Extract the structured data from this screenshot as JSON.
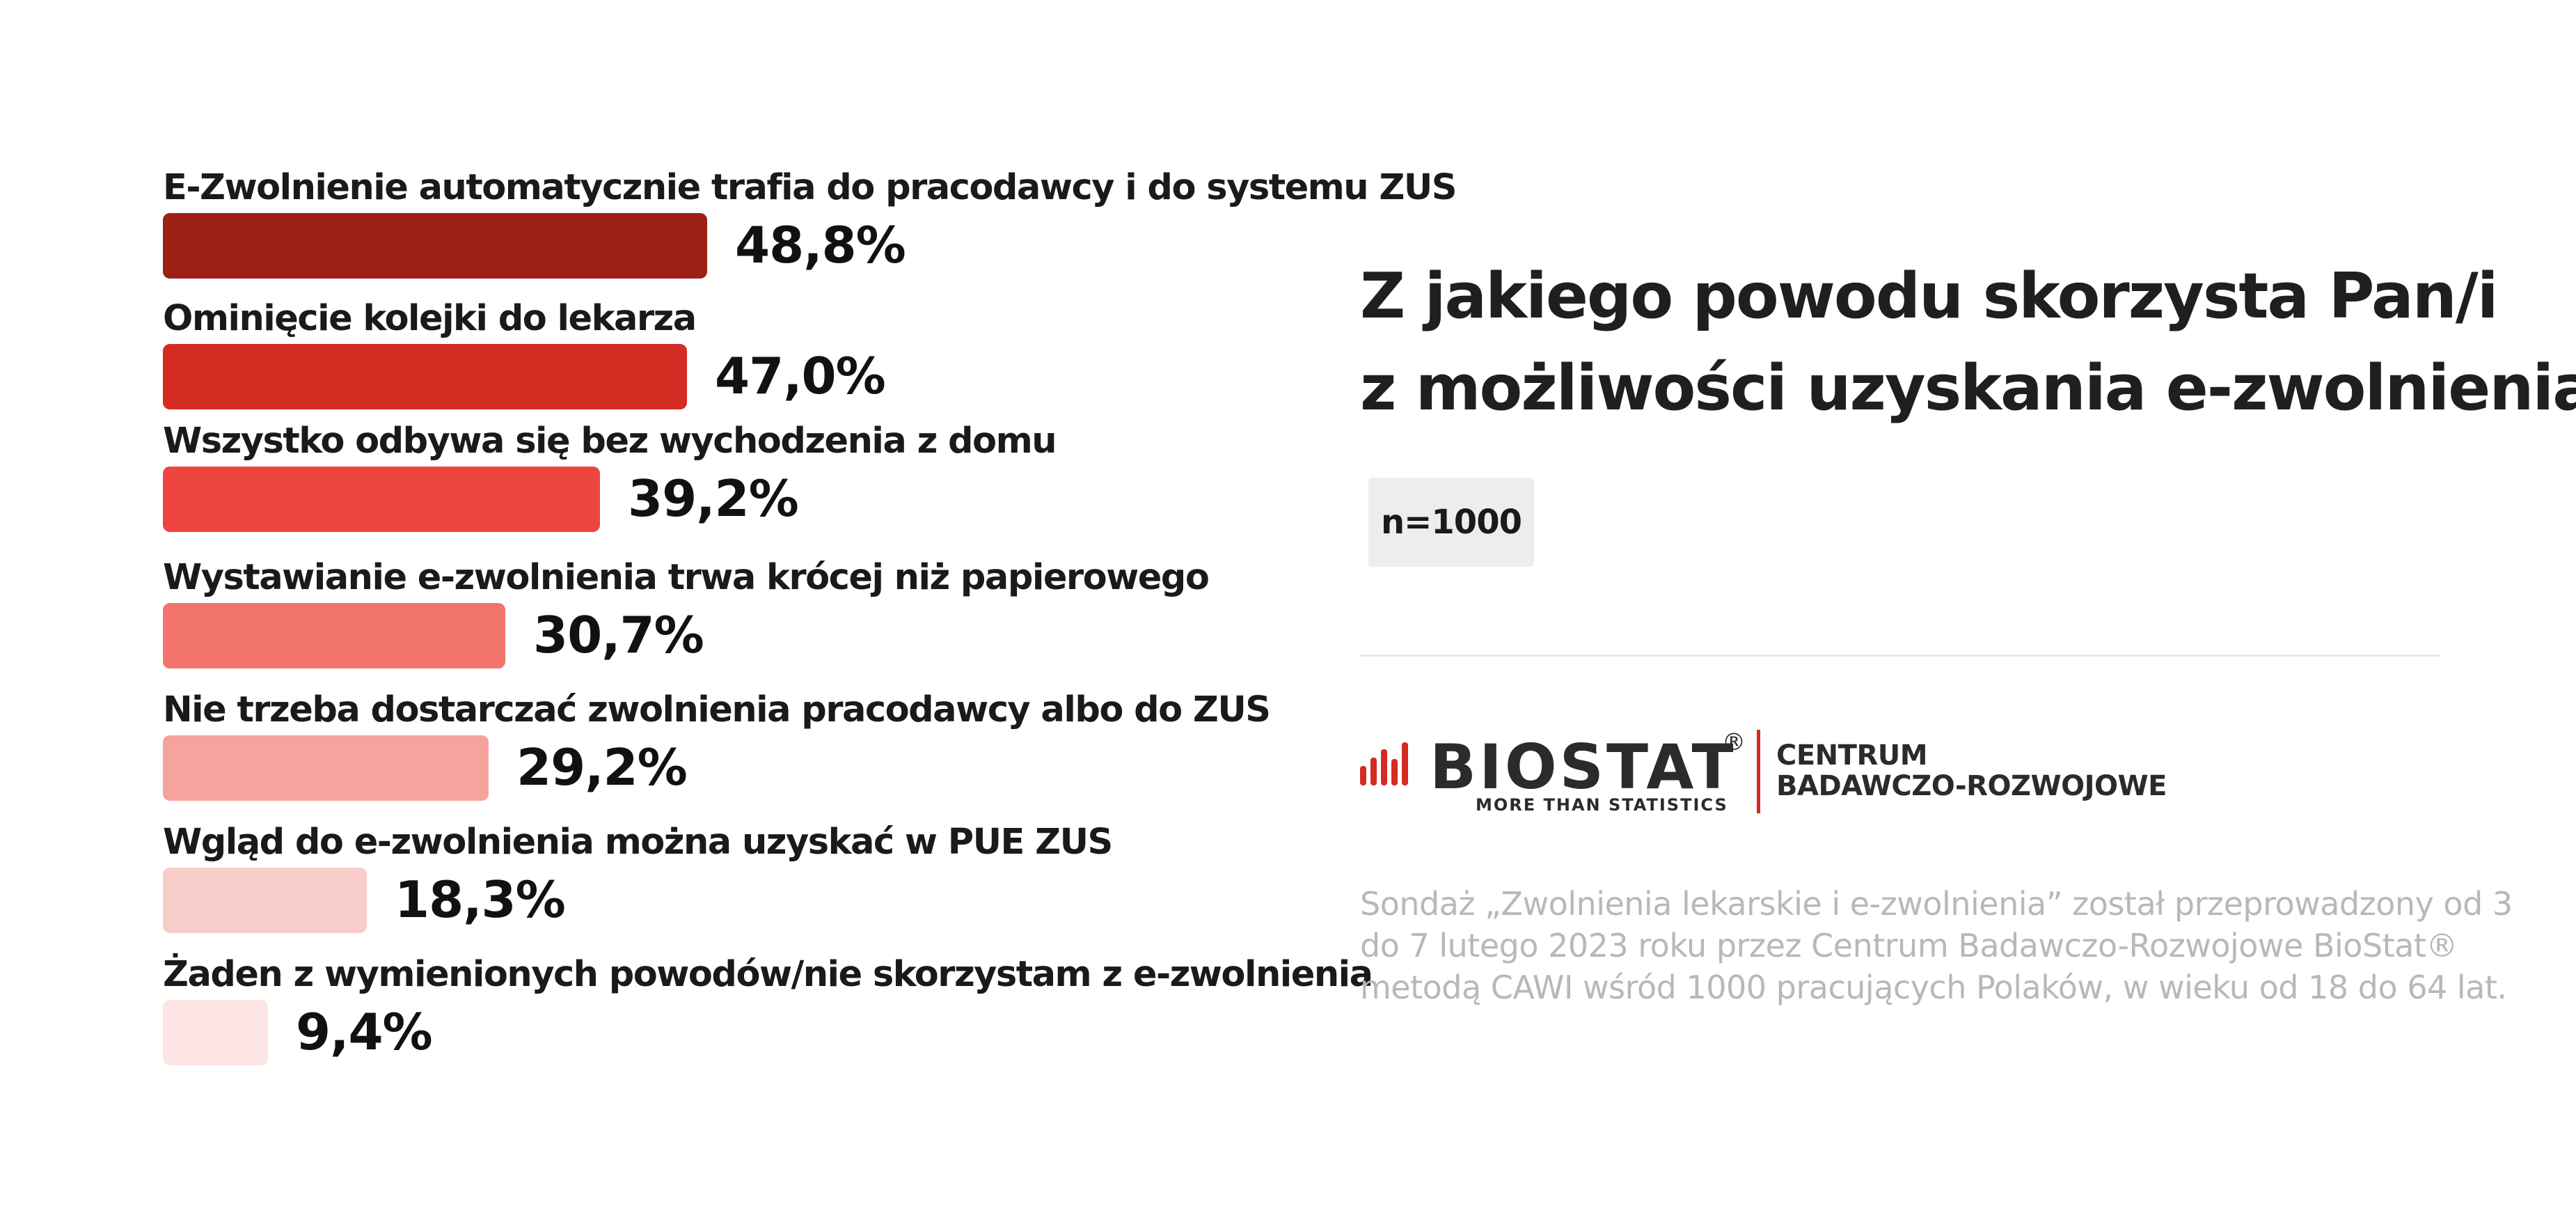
{
  "chart_data": {
    "type": "bar",
    "orientation": "horizontal",
    "categories": [
      "E-Zwolnienie automatycznie trafia do pracodawcy i do systemu ZUS",
      "Ominięcie kolejki do lekarza",
      "Wszystko odbywa się bez wychodzenia z domu",
      "Wystawianie e-zwolnienia trwa krócej niż papierowego",
      "Nie trzeba dostarczać zwolnienia pracodawcy albo do ZUS",
      "Wgląd do e-zwolnienia można uzyskać w PUE ZUS",
      "Żaden z wymienionych powodów/nie skorzystam z e-zwolnienia"
    ],
    "values": [
      48.8,
      47.0,
      39.2,
      30.7,
      29.2,
      18.3,
      9.4
    ],
    "value_labels": [
      "48,8%",
      "47,0%",
      "39,2%",
      "30,7%",
      "29,2%",
      "18,3%",
      "9,4%"
    ],
    "bar_colors": [
      "#9c2016",
      "#d42b23",
      "#ef4540",
      "#f3746d",
      "#f6a39e",
      "#f9cdca",
      "#fce5e4"
    ],
    "xlim": [
      0,
      48.8
    ],
    "grid": false
  },
  "panel": {
    "title_lines": [
      "Z jakiego powodu skorzysta Pan/i",
      "z możliwości uzyskania e-zwolnienia"
    ],
    "sample_badge": "n=1000",
    "logo": {
      "wordmark": "BIOSTAT",
      "registered": "®",
      "tagline": "MORE THAN STATISTICS",
      "center_line1": "CENTRUM",
      "center_line2": "BADAWCZO-ROZWOJOWE",
      "accent_color": "#d42b23"
    },
    "footnote": "Sondaż „Zwolnienia lekarskie i e-zwolnienia” został przeprowadzony od 3 do 7 lutego 2023 roku przez Centrum Badawczo-Rozwojowe BioStat® metodą CAWI wśród 1000 pracujących Polaków, w wieku od 18 do 64 lat."
  }
}
